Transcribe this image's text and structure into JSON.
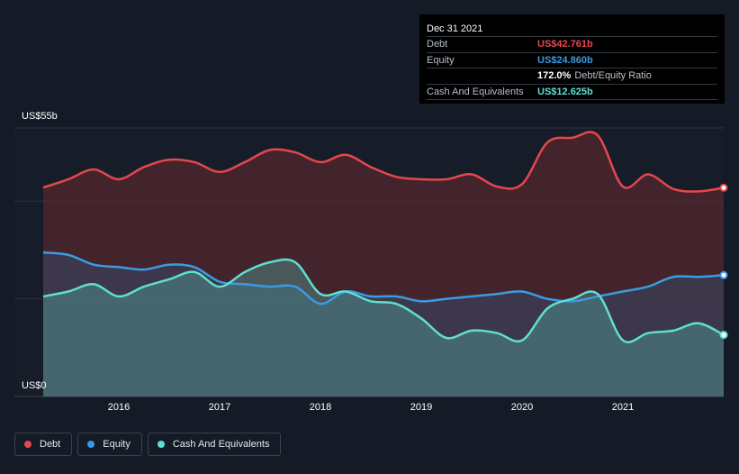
{
  "tooltip": {
    "date": "Dec 31 2021",
    "rows": [
      {
        "label": "Debt",
        "value": "US$42.761b",
        "color": "#e5474d"
      },
      {
        "label": "Equity",
        "value": "US$24.860b",
        "color": "#3a9be4"
      },
      {
        "label": "",
        "value": "172.0%",
        "extra": "Debt/Equity Ratio",
        "color": "#ffffff"
      },
      {
        "label": "Cash And Equivalents",
        "value": "US$12.625b",
        "color": "#5ee0d0"
      }
    ]
  },
  "chart_data": {
    "type": "area",
    "y_top_label": "US$55b",
    "y_bottom_label": "US$0",
    "ylim": [
      0,
      55
    ],
    "xlim": [
      2015.25,
      2022.0
    ],
    "x_ticks": [
      "2016",
      "2017",
      "2018",
      "2019",
      "2020",
      "2021"
    ],
    "x_tick_values": [
      2016,
      2017,
      2018,
      2019,
      2020,
      2021
    ],
    "grid": true,
    "legend_position": "bottom-left",
    "series": [
      {
        "name": "Debt",
        "color": "#e5474d",
        "points": [
          [
            2015.25,
            42.8
          ],
          [
            2015.5,
            44.5
          ],
          [
            2015.75,
            46.5
          ],
          [
            2016.0,
            44.5
          ],
          [
            2016.25,
            47.0
          ],
          [
            2016.5,
            48.5
          ],
          [
            2016.75,
            48.0
          ],
          [
            2017.0,
            46.0
          ],
          [
            2017.25,
            48.0
          ],
          [
            2017.5,
            50.5
          ],
          [
            2017.75,
            50.0
          ],
          [
            2018.0,
            48.0
          ],
          [
            2018.25,
            49.5
          ],
          [
            2018.5,
            47.0
          ],
          [
            2018.75,
            45.0
          ],
          [
            2019.0,
            44.5
          ],
          [
            2019.25,
            44.5
          ],
          [
            2019.5,
            45.5
          ],
          [
            2019.75,
            43.0
          ],
          [
            2020.0,
            43.5
          ],
          [
            2020.25,
            52.0
          ],
          [
            2020.5,
            53.0
          ],
          [
            2020.75,
            53.5
          ],
          [
            2021.0,
            43.0
          ],
          [
            2021.25,
            45.5
          ],
          [
            2021.5,
            42.5
          ],
          [
            2021.75,
            42.0
          ],
          [
            2022.0,
            42.761
          ]
        ]
      },
      {
        "name": "Equity",
        "color": "#3a9be4",
        "points": [
          [
            2015.25,
            29.5
          ],
          [
            2015.5,
            29.0
          ],
          [
            2015.75,
            27.0
          ],
          [
            2016.0,
            26.5
          ],
          [
            2016.25,
            26.0
          ],
          [
            2016.5,
            27.0
          ],
          [
            2016.75,
            26.5
          ],
          [
            2017.0,
            23.5
          ],
          [
            2017.25,
            23.0
          ],
          [
            2017.5,
            22.5
          ],
          [
            2017.75,
            22.5
          ],
          [
            2018.0,
            19.0
          ],
          [
            2018.25,
            21.5
          ],
          [
            2018.5,
            20.5
          ],
          [
            2018.75,
            20.5
          ],
          [
            2019.0,
            19.5
          ],
          [
            2019.25,
            20.0
          ],
          [
            2019.5,
            20.5
          ],
          [
            2019.75,
            21.0
          ],
          [
            2020.0,
            21.5
          ],
          [
            2020.25,
            20.0
          ],
          [
            2020.5,
            19.5
          ],
          [
            2020.75,
            20.5
          ],
          [
            2021.0,
            21.5
          ],
          [
            2021.25,
            22.5
          ],
          [
            2021.5,
            24.5
          ],
          [
            2021.75,
            24.5
          ],
          [
            2022.0,
            24.86
          ]
        ]
      },
      {
        "name": "Cash And Equivalents",
        "color": "#5ee0d0",
        "points": [
          [
            2015.25,
            20.5
          ],
          [
            2015.5,
            21.5
          ],
          [
            2015.75,
            23.0
          ],
          [
            2016.0,
            20.5
          ],
          [
            2016.25,
            22.5
          ],
          [
            2016.5,
            24.0
          ],
          [
            2016.75,
            25.5
          ],
          [
            2017.0,
            22.5
          ],
          [
            2017.25,
            25.5
          ],
          [
            2017.5,
            27.5
          ],
          [
            2017.75,
            27.5
          ],
          [
            2018.0,
            21.0
          ],
          [
            2018.25,
            21.5
          ],
          [
            2018.5,
            19.5
          ],
          [
            2018.75,
            19.0
          ],
          [
            2019.0,
            16.0
          ],
          [
            2019.25,
            12.0
          ],
          [
            2019.5,
            13.5
          ],
          [
            2019.75,
            13.0
          ],
          [
            2020.0,
            11.5
          ],
          [
            2020.25,
            18.0
          ],
          [
            2020.5,
            20.0
          ],
          [
            2020.75,
            21.0
          ],
          [
            2021.0,
            11.5
          ],
          [
            2021.25,
            13.0
          ],
          [
            2021.5,
            13.5
          ],
          [
            2021.75,
            15.0
          ],
          [
            2022.0,
            12.625
          ]
        ]
      }
    ]
  },
  "legend": [
    {
      "label": "Debt",
      "color": "#e5474d"
    },
    {
      "label": "Equity",
      "color": "#3a9be4"
    },
    {
      "label": "Cash And Equivalents",
      "color": "#5ee0d0"
    }
  ]
}
